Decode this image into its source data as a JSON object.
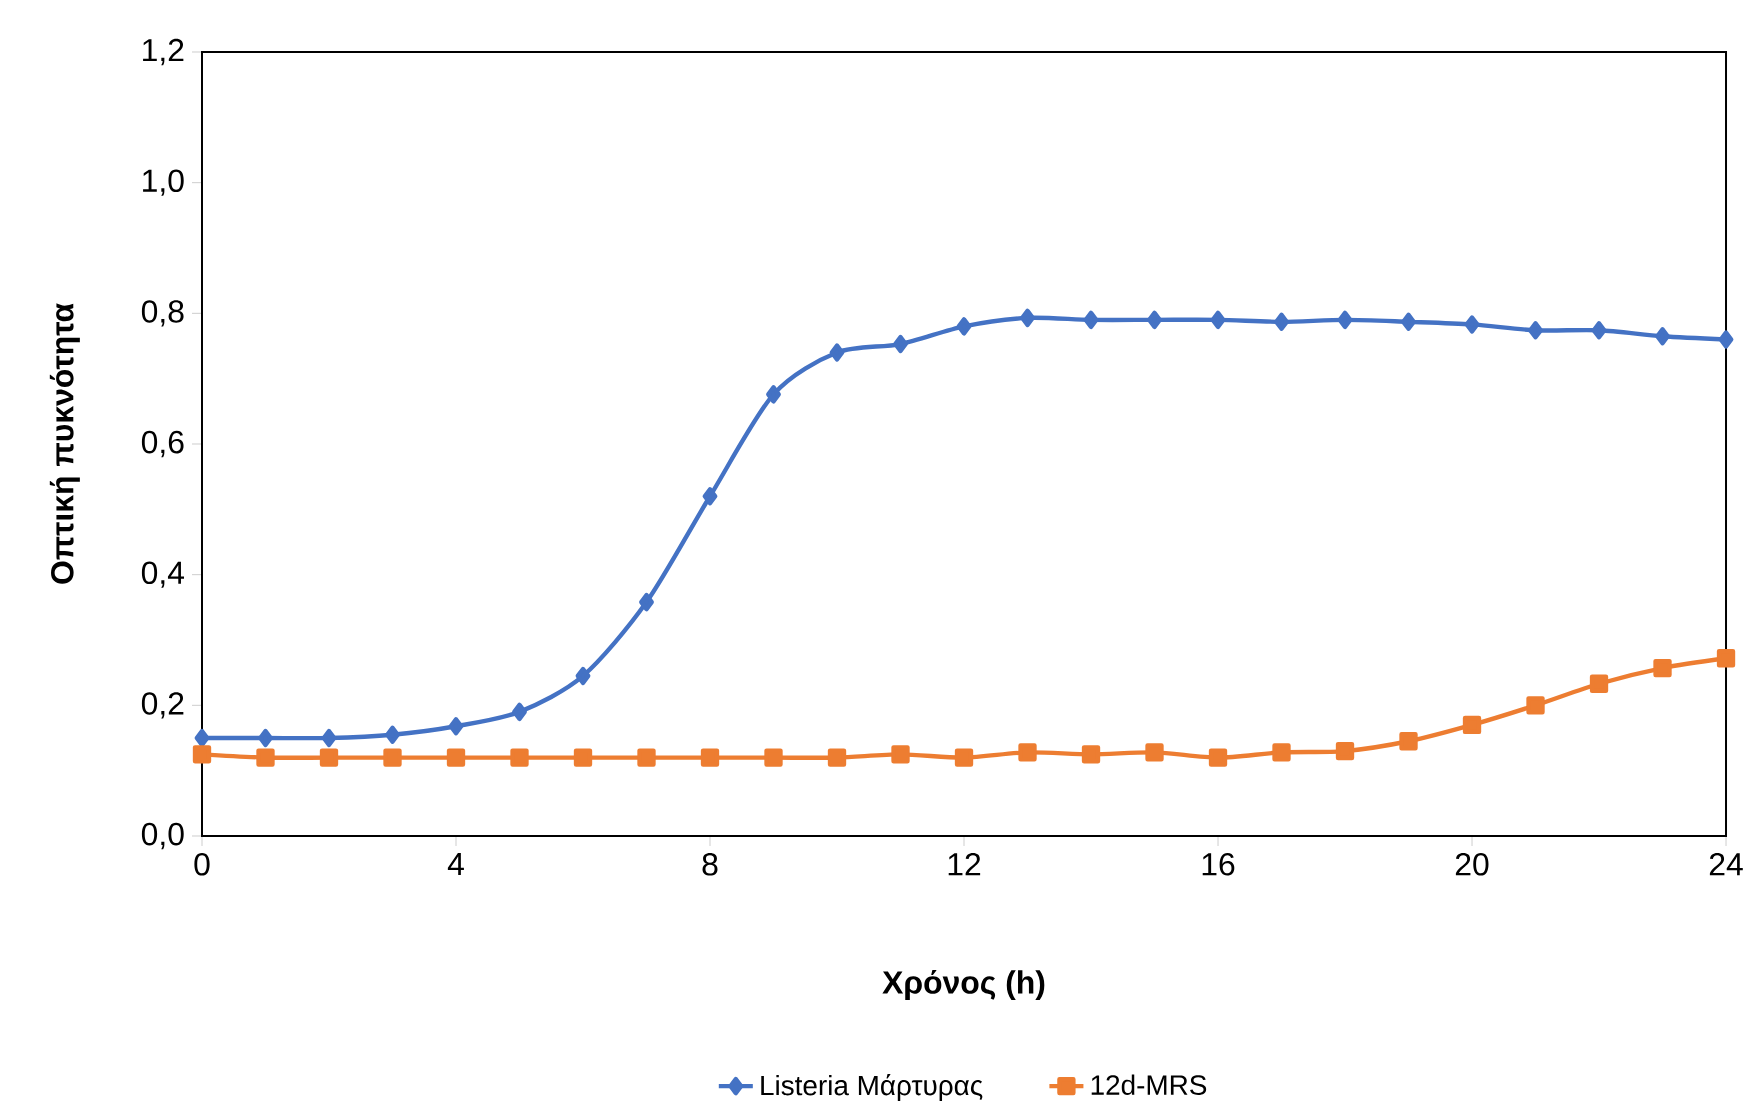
{
  "chart_data": {
    "type": "line",
    "xlabel": "Χρόνος (h)",
    "ylabel": "Οπτική πυκνότητα",
    "x": [
      0,
      1,
      2,
      3,
      4,
      5,
      6,
      7,
      8,
      9,
      10,
      11,
      12,
      13,
      14,
      15,
      16,
      17,
      18,
      19,
      20,
      21,
      22,
      23,
      24
    ],
    "series": [
      {
        "name": "Listeria Μάρτυρας",
        "color": "#4472c4",
        "marker": "diamond",
        "values": [
          0.15,
          0.15,
          0.15,
          0.155,
          0.168,
          0.19,
          0.245,
          0.358,
          0.52,
          0.676,
          0.74,
          0.753,
          0.78,
          0.793,
          0.79,
          0.79,
          0.79,
          0.787,
          0.79,
          0.787,
          0.783,
          0.774,
          0.774,
          0.765,
          0.76
        ]
      },
      {
        "name": "12d-MRS",
        "color": "#ed7d31",
        "marker": "square",
        "values": [
          0.125,
          0.12,
          0.12,
          0.12,
          0.12,
          0.12,
          0.12,
          0.12,
          0.12,
          0.12,
          0.12,
          0.125,
          0.12,
          0.128,
          0.125,
          0.128,
          0.12,
          0.128,
          0.13,
          0.145,
          0.17,
          0.2,
          0.233,
          0.257,
          0.272
        ]
      }
    ],
    "xlim": [
      0,
      24
    ],
    "xticks": [
      0,
      4,
      8,
      12,
      16,
      20,
      24
    ],
    "ylim": [
      0,
      1.2
    ],
    "yticks": [
      {
        "value": 0,
        "label": "0,0"
      },
      {
        "value": 0.2,
        "label": "0,2"
      },
      {
        "value": 0.4,
        "label": "0,4"
      },
      {
        "value": 0.6,
        "label": "0,6"
      },
      {
        "value": 0.8,
        "label": "0,8"
      },
      {
        "value": 1.0,
        "label": "1,0"
      },
      {
        "value": 1.2,
        "label": "1,2"
      }
    ],
    "grid": false,
    "legend": "bottom",
    "line_style": "solid"
  }
}
